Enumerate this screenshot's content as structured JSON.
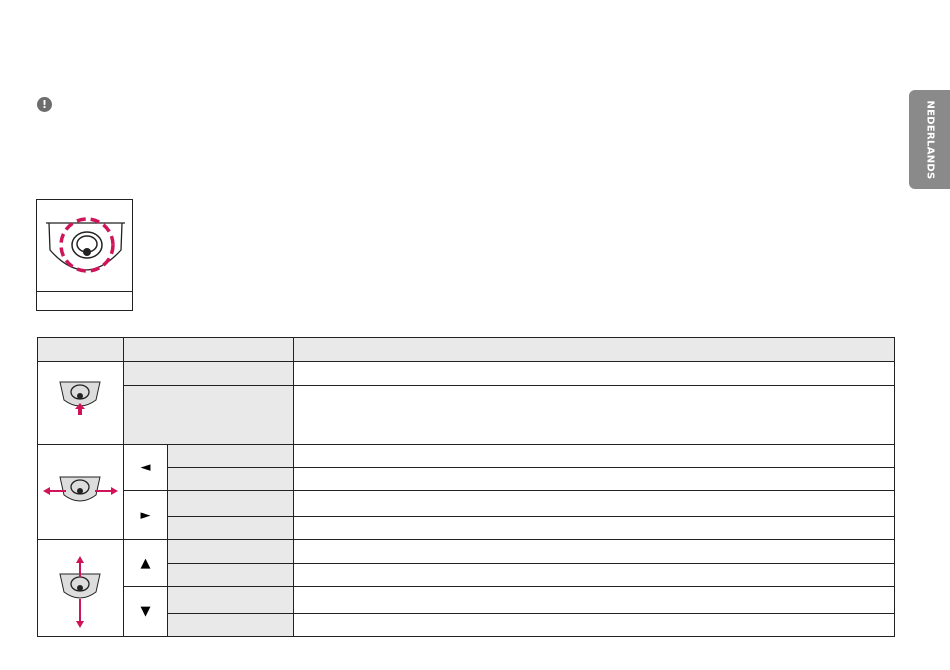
{
  "side_tab": {
    "label": "NEDERLANDS",
    "color": "#8a8a8a"
  },
  "notice_icon": "exclamation-circle-icon",
  "accent_color": "#d0145a",
  "table": {
    "arrows": {
      "left": "◄",
      "right": "►",
      "up": "▲",
      "down": "▼"
    }
  }
}
